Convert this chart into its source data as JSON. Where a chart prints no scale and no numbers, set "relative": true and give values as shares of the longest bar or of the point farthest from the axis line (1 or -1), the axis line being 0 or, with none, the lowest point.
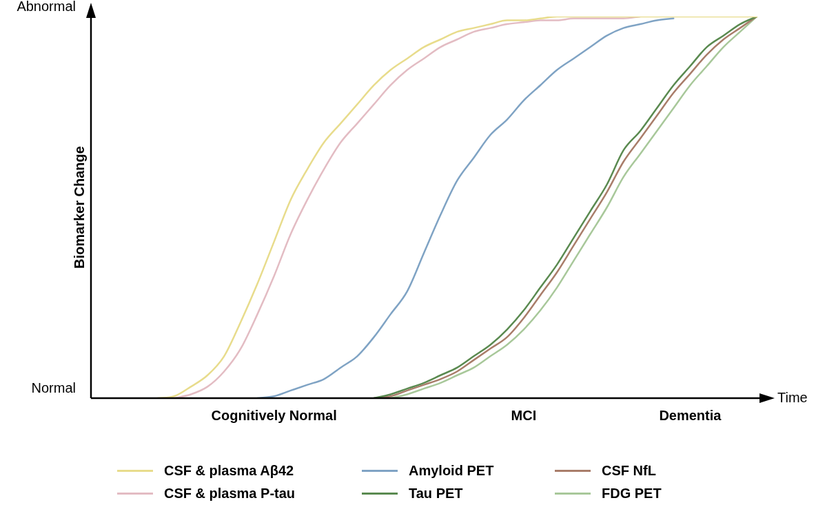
{
  "chart_data": {
    "type": "line",
    "ylabel": "Biomarker Change",
    "xlabel": "Time",
    "categories": [
      null,
      null,
      null,
      null,
      null,
      null,
      null,
      null,
      null,
      null,
      null,
      "Cognitively Normal",
      null,
      null,
      null,
      null,
      null,
      null,
      null,
      null,
      null,
      null,
      null,
      null,
      null,
      null,
      "MCI",
      null,
      null,
      null,
      null,
      null,
      null,
      null,
      null,
      null,
      "Dementia",
      null,
      null,
      null,
      null
    ],
    "relative": true,
    "annotations": [
      "Abnormal",
      "Normal"
    ],
    "grid": false,
    "legend": "bottom",
    "marker": "none",
    "line_style": "solid",
    "series": [
      {
        "name": "CSF & plasma Aβ42",
        "color": "#e8dc8c",
        "values": [
          null,
          null,
          null,
          null,
          0,
          0.005,
          0.03,
          0.06,
          0.11,
          0.2,
          0.3,
          0.41,
          0.52,
          0.6,
          0.67,
          0.72,
          0.77,
          0.82,
          0.86,
          0.89,
          0.92,
          0.94,
          0.96,
          0.97,
          0.98,
          0.99,
          0.99,
          0.995,
          1,
          1,
          1,
          1,
          1,
          1,
          1,
          1,
          1,
          1,
          1,
          1,
          1
        ]
      },
      {
        "name": "CSF & plasma P-tau",
        "color": "#e3bcc3",
        "values": [
          null,
          null,
          null,
          null,
          null,
          0,
          0.01,
          0.03,
          0.07,
          0.13,
          0.22,
          0.32,
          0.43,
          0.52,
          0.6,
          0.67,
          0.72,
          0.77,
          0.82,
          0.86,
          0.89,
          0.92,
          0.94,
          0.96,
          0.97,
          0.98,
          0.985,
          0.99,
          0.99,
          0.995,
          0.995,
          0.995,
          0.995,
          1,
          null,
          null,
          null,
          null,
          null,
          null,
          null
        ]
      },
      {
        "name": "Amyloid PET",
        "color": "#7fa3c4",
        "values": [
          null,
          null,
          null,
          null,
          null,
          null,
          null,
          null,
          null,
          null,
          0,
          0.005,
          0.02,
          0.035,
          0.05,
          0.08,
          0.11,
          0.16,
          0.22,
          0.28,
          0.38,
          0.48,
          0.57,
          0.63,
          0.69,
          0.73,
          0.78,
          0.82,
          0.86,
          0.89,
          0.92,
          0.95,
          0.97,
          0.98,
          0.99,
          0.995,
          null,
          null,
          null,
          null,
          null
        ]
      },
      {
        "name": "Tau PET",
        "color": "#5a8a50",
        "values": [
          null,
          null,
          null,
          null,
          null,
          null,
          null,
          null,
          null,
          null,
          null,
          null,
          null,
          null,
          null,
          null,
          null,
          0,
          0.01,
          0.025,
          0.04,
          0.06,
          0.08,
          0.11,
          0.14,
          0.18,
          0.23,
          0.29,
          0.35,
          0.42,
          0.49,
          0.56,
          0.65,
          0.7,
          0.76,
          0.82,
          0.87,
          0.92,
          0.95,
          0.98,
          1
        ]
      },
      {
        "name": "CSF NfL",
        "color": "#a97d6a",
        "values": [
          null,
          null,
          null,
          null,
          null,
          null,
          null,
          null,
          null,
          null,
          null,
          null,
          null,
          null,
          null,
          null,
          null,
          0,
          0.005,
          0.02,
          0.035,
          0.05,
          0.07,
          0.1,
          0.13,
          0.16,
          0.21,
          0.27,
          0.33,
          0.4,
          0.47,
          0.54,
          0.62,
          0.68,
          0.74,
          0.8,
          0.85,
          0.9,
          0.94,
          0.97,
          1
        ]
      },
      {
        "name": "FDG PET",
        "color": "#a8c89a",
        "values": [
          null,
          null,
          null,
          null,
          null,
          null,
          null,
          null,
          null,
          null,
          null,
          null,
          null,
          null,
          null,
          null,
          null,
          null,
          0,
          0.01,
          0.025,
          0.04,
          0.06,
          0.08,
          0.11,
          0.14,
          0.18,
          0.23,
          0.29,
          0.36,
          0.43,
          0.5,
          0.58,
          0.64,
          0.7,
          0.76,
          0.82,
          0.87,
          0.92,
          0.96,
          1
        ]
      }
    ]
  }
}
